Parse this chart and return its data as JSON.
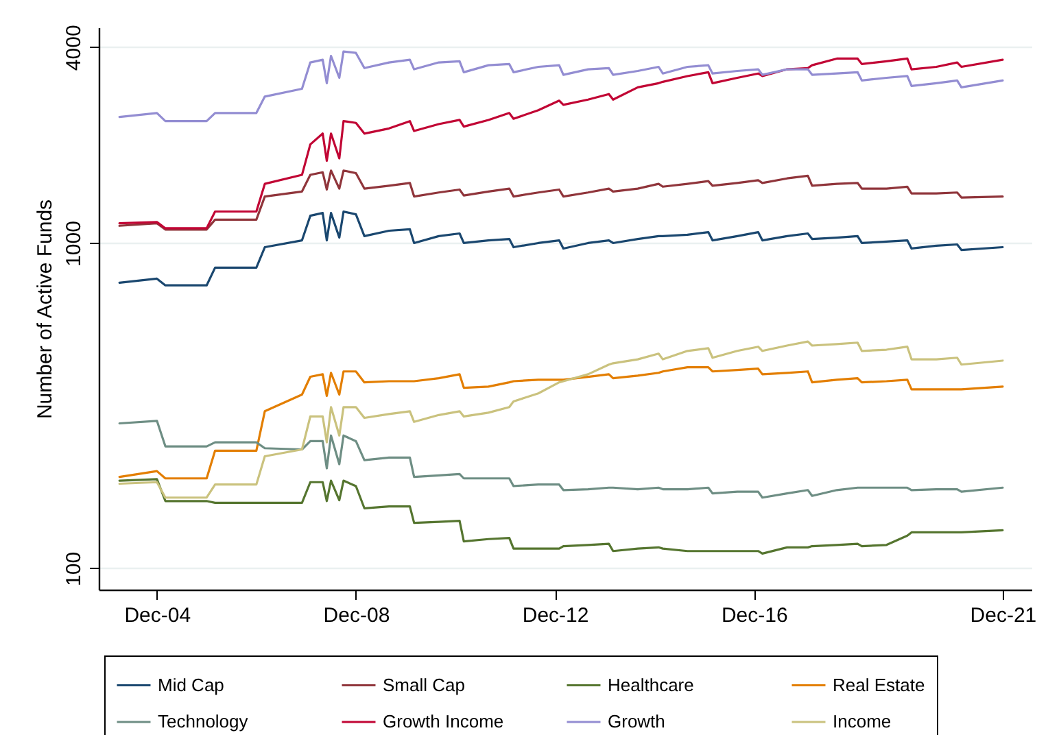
{
  "chart_data": {
    "type": "line",
    "ylabel": "Number of Active Funds",
    "log": true,
    "grid": "y",
    "legend": "bottom",
    "xlim": [
      "2003-10",
      "2022-07"
    ],
    "ylim": [
      86,
      4600
    ],
    "xticks": [
      {
        "value": "2004-12",
        "label": "Dec-04"
      },
      {
        "value": "2008-12",
        "label": "Dec-08"
      },
      {
        "value": "2012-12",
        "label": "Dec-12"
      },
      {
        "value": "2016-12",
        "label": "Dec-16"
      },
      {
        "value": "2021-12",
        "label": "Dec-21"
      }
    ],
    "yticks": [
      100,
      1000,
      4000
    ],
    "x": [
      "2004-03",
      "2004-12",
      "2005-02",
      "2005-12",
      "2006-02",
      "2006-12",
      "2007-02",
      "2007-11",
      "2008-01",
      "2008-04",
      "2008-05",
      "2008-06",
      "2008-08",
      "2008-09",
      "2008-12",
      "2009-02",
      "2009-08",
      "2010-01",
      "2010-02",
      "2010-08",
      "2011-01",
      "2011-02",
      "2011-08",
      "2012-01",
      "2012-02",
      "2012-08",
      "2013-01",
      "2013-02",
      "2013-08",
      "2014-01",
      "2014-02",
      "2014-08",
      "2015-01",
      "2015-02",
      "2015-08",
      "2016-01",
      "2016-02",
      "2016-08",
      "2017-01",
      "2017-02",
      "2017-08",
      "2018-01",
      "2018-02",
      "2018-08",
      "2019-01",
      "2019-02",
      "2019-08",
      "2020-01",
      "2020-02",
      "2020-08",
      "2021-01",
      "2021-02",
      "2021-12"
    ],
    "series": [
      {
        "name": "Mid Cap",
        "color": "#1a476f",
        "values": [
          755,
          777,
          741,
          741,
          840,
          840,
          971,
          1019,
          1213,
          1237,
          1019,
          1237,
          1039,
          1249,
          1225,
          1050,
          1091,
          1102,
          1000,
          1050,
          1070,
          1000,
          1019,
          1029,
          971,
          1000,
          1019,
          962,
          1000,
          1019,
          1000,
          1029,
          1050,
          1050,
          1060,
          1080,
          1019,
          1050,
          1080,
          1019,
          1050,
          1070,
          1029,
          1039,
          1050,
          1000,
          1010,
          1019,
          962,
          981,
          990,
          952,
          971
        ]
      },
      {
        "name": "Small Cap",
        "color": "#90353b",
        "values": [
          1130,
          1150,
          1100,
          1100,
          1180,
          1180,
          1390,
          1440,
          1620,
          1650,
          1460,
          1670,
          1470,
          1670,
          1640,
          1470,
          1500,
          1530,
          1390,
          1430,
          1460,
          1400,
          1440,
          1470,
          1390,
          1430,
          1460,
          1390,
          1430,
          1470,
          1440,
          1470,
          1520,
          1490,
          1520,
          1550,
          1500,
          1530,
          1560,
          1530,
          1580,
          1610,
          1500,
          1520,
          1530,
          1470,
          1470,
          1490,
          1420,
          1420,
          1430,
          1380,
          1390
        ]
      },
      {
        "name": "Healthcare",
        "color": "#55752f",
        "values": [
          186,
          188,
          161,
          161,
          159,
          159,
          159,
          159,
          184,
          184,
          161,
          186,
          162,
          186,
          179,
          153,
          155,
          155,
          138,
          139,
          140,
          121,
          123,
          124,
          115,
          115,
          115,
          117,
          118,
          119,
          113,
          115,
          116,
          115,
          113,
          113,
          113,
          113,
          113,
          111,
          116,
          116,
          117,
          118,
          119,
          117,
          118,
          126,
          129,
          129,
          129,
          129,
          131
        ]
      },
      {
        "name": "Real Estate",
        "color": "#e37e00",
        "values": [
          191,
          199,
          189,
          189,
          230,
          230,
          304,
          342,
          388,
          395,
          339,
          399,
          342,
          403,
          403,
          373,
          376,
          376,
          376,
          384,
          395,
          359,
          362,
          373,
          376,
          380,
          380,
          380,
          388,
          395,
          384,
          391,
          399,
          403,
          415,
          415,
          403,
          407,
          411,
          395,
          399,
          403,
          373,
          380,
          384,
          373,
          376,
          380,
          355,
          355,
          355,
          355,
          362
        ]
      },
      {
        "name": "Technology",
        "color": "#6e8e84",
        "values": [
          279,
          284,
          237,
          237,
          244,
          244,
          234,
          232,
          246,
          246,
          203,
          256,
          209,
          256,
          246,
          215,
          219,
          219,
          191,
          193,
          195,
          189,
          189,
          189,
          179,
          181,
          181,
          174,
          175,
          177,
          177,
          175,
          177,
          175,
          175,
          177,
          170,
          172,
          172,
          165,
          170,
          174,
          167,
          174,
          177,
          177,
          177,
          177,
          174,
          175,
          175,
          172,
          177
        ]
      },
      {
        "name": "Growth Income",
        "color": "#c10534",
        "values": [
          1150,
          1160,
          1110,
          1110,
          1250,
          1250,
          1520,
          1620,
          2010,
          2170,
          1790,
          2170,
          1820,
          2370,
          2340,
          2170,
          2250,
          2370,
          2210,
          2320,
          2390,
          2280,
          2390,
          2510,
          2410,
          2560,
          2740,
          2660,
          2760,
          2870,
          2760,
          3010,
          3100,
          3130,
          3260,
          3350,
          3100,
          3220,
          3320,
          3260,
          3420,
          3450,
          3520,
          3690,
          3690,
          3550,
          3620,
          3690,
          3420,
          3480,
          3590,
          3480,
          3660
        ]
      },
      {
        "name": "Growth",
        "color": "#938dd2",
        "values": [
          2440,
          2510,
          2370,
          2370,
          2510,
          2510,
          2820,
          2980,
          3590,
          3660,
          3100,
          3760,
          3220,
          3880,
          3840,
          3450,
          3590,
          3660,
          3420,
          3590,
          3620,
          3350,
          3520,
          3550,
          3350,
          3480,
          3520,
          3290,
          3420,
          3450,
          3290,
          3380,
          3480,
          3320,
          3480,
          3520,
          3320,
          3380,
          3420,
          3290,
          3420,
          3420,
          3290,
          3320,
          3350,
          3160,
          3220,
          3260,
          3040,
          3100,
          3160,
          3010,
          3160
        ]
      },
      {
        "name": "Income",
        "color": "#cac27e",
        "values": [
          182,
          184,
          165,
          165,
          181,
          181,
          221,
          232,
          293,
          293,
          244,
          313,
          256,
          313,
          313,
          290,
          298,
          304,
          282,
          296,
          304,
          293,
          301,
          313,
          326,
          345,
          373,
          376,
          395,
          423,
          427,
          439,
          457,
          439,
          466,
          475,
          444,
          466,
          480,
          466,
          484,
          498,
          484,
          489,
          494,
          466,
          470,
          480,
          439,
          439,
          444,
          423,
          435
        ]
      }
    ]
  }
}
